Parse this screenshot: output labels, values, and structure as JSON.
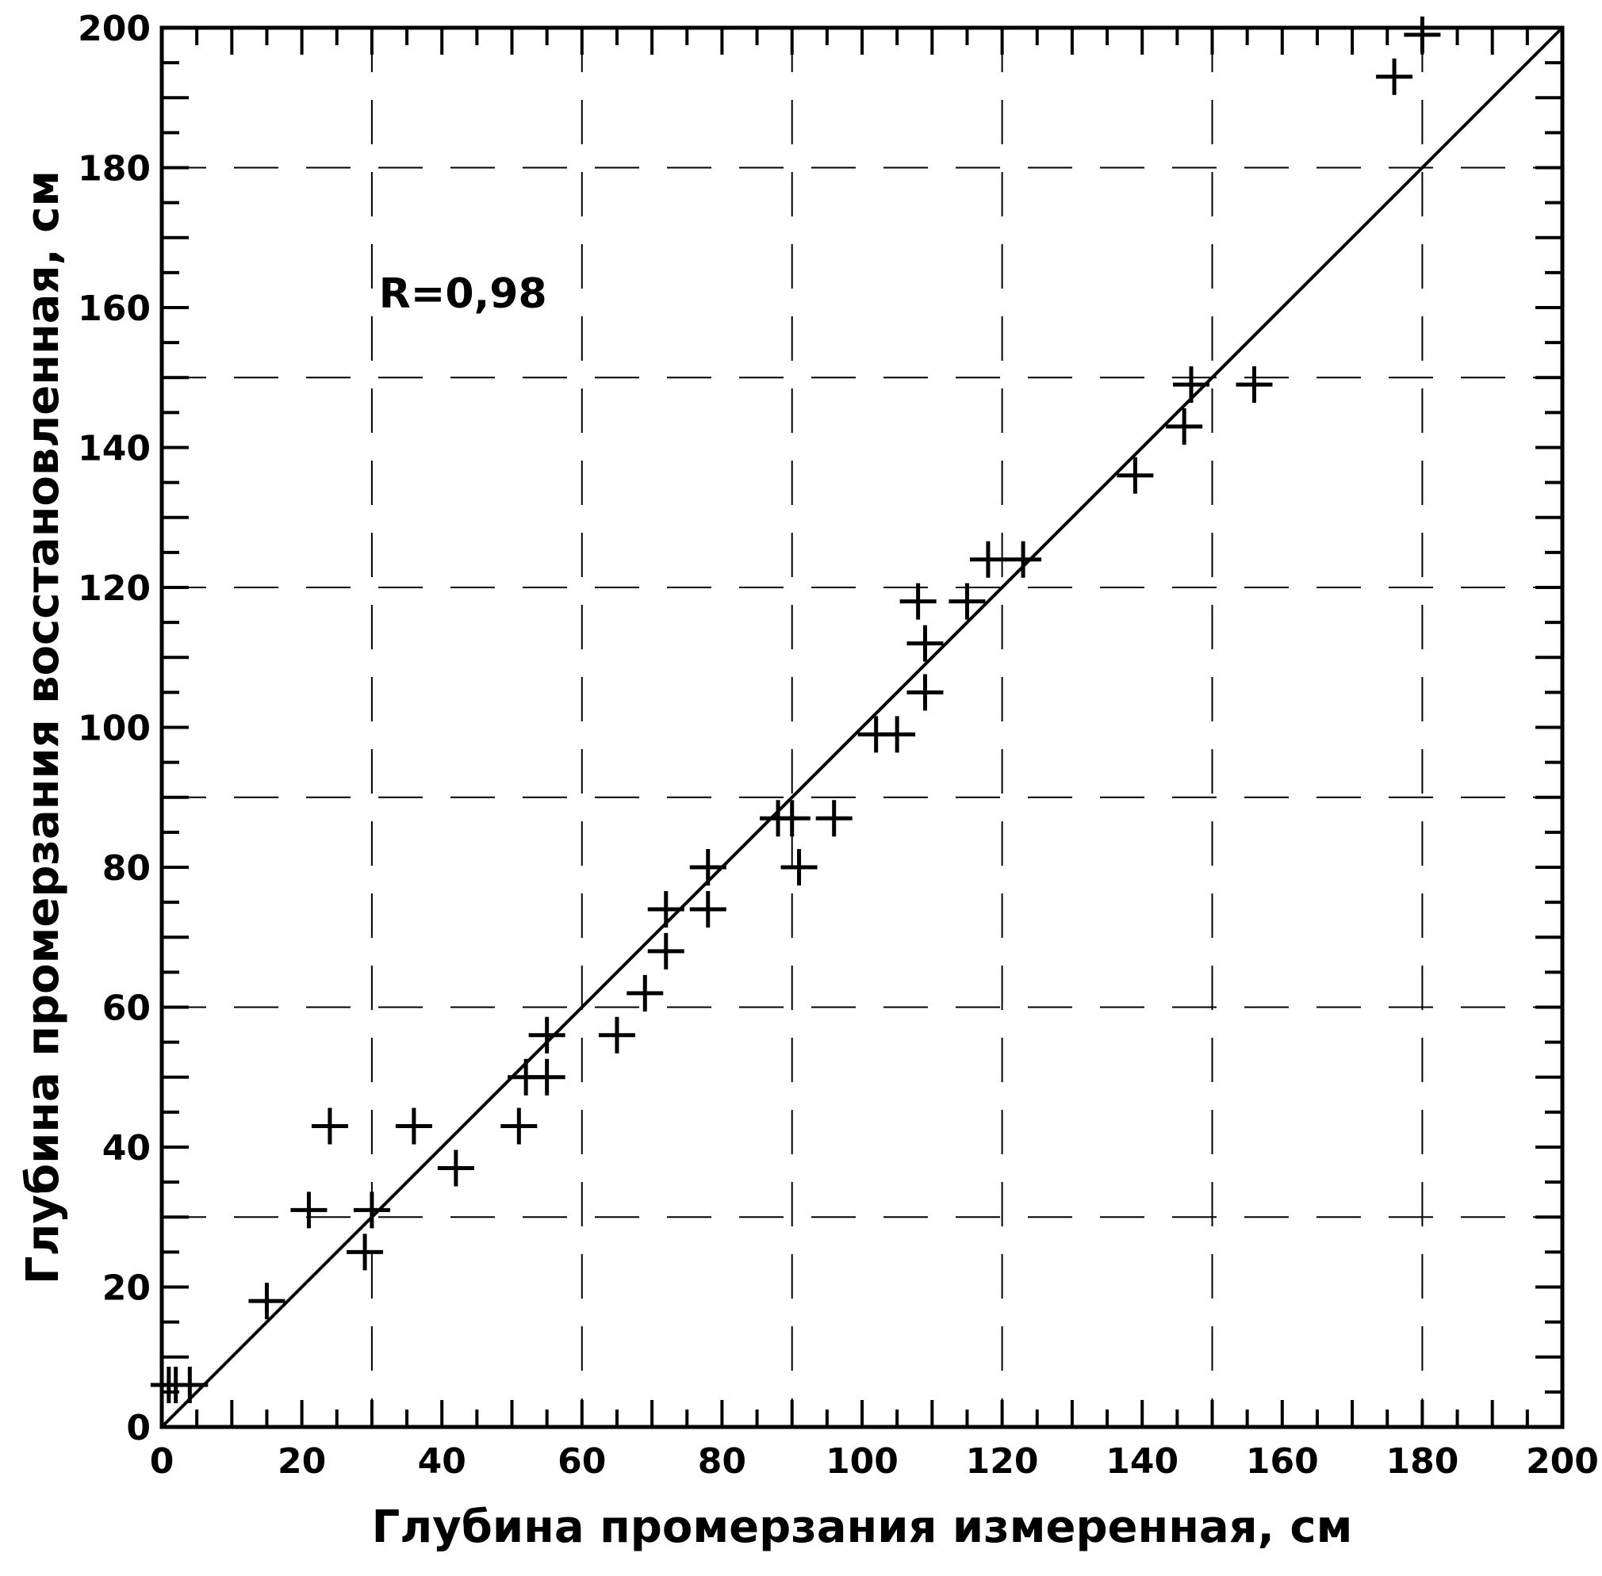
{
  "chart_data": {
    "type": "scatter",
    "title": "",
    "xlabel": "Глубина промерзания измеренная, см",
    "ylabel": "Глубина промерзания восстановленная, см",
    "xlim": [
      0,
      200
    ],
    "ylim": [
      0,
      200
    ],
    "x_ticks": [
      0,
      20,
      40,
      60,
      80,
      100,
      120,
      140,
      160,
      180,
      200
    ],
    "y_ticks": [
      0,
      20,
      40,
      60,
      80,
      100,
      120,
      140,
      160,
      180,
      200
    ],
    "x_tick_labels": [
      "0",
      "20",
      "40",
      "60",
      "80",
      "100",
      "120",
      "140",
      "160",
      "180",
      "200"
    ],
    "y_tick_labels": [
      "0",
      "20",
      "40",
      "60",
      "80",
      "100",
      "120",
      "140",
      "160",
      "180",
      "200"
    ],
    "x_gridlines": [
      30,
      60,
      90,
      120,
      150,
      180
    ],
    "y_gridlines": [
      30,
      60,
      90,
      120,
      150,
      180
    ],
    "grid": true,
    "reference_line": {
      "type": "y=x",
      "from": [
        0,
        0
      ],
      "to": [
        200,
        200
      ]
    },
    "annotation": "R=0,98",
    "marker": "plus",
    "colors": {
      "marks": "#000000",
      "grid": "#000000",
      "background": "#ffffff"
    },
    "series": [
      {
        "points": [
          [
            1,
            6
          ],
          [
            2,
            6
          ],
          [
            4,
            6
          ],
          [
            15,
            18
          ],
          [
            21,
            31
          ],
          [
            24,
            43
          ],
          [
            29,
            25
          ],
          [
            30,
            31
          ],
          [
            36,
            43
          ],
          [
            42,
            37
          ],
          [
            51,
            43
          ],
          [
            52,
            50
          ],
          [
            55,
            50
          ],
          [
            55,
            56
          ],
          [
            65,
            56
          ],
          [
            69,
            62
          ],
          [
            72,
            68
          ],
          [
            72,
            74
          ],
          [
            78,
            74
          ],
          [
            78,
            80
          ],
          [
            88,
            87
          ],
          [
            90,
            87
          ],
          [
            91,
            80
          ],
          [
            96,
            87
          ],
          [
            102,
            99
          ],
          [
            105,
            99
          ],
          [
            108,
            118
          ],
          [
            109,
            105
          ],
          [
            109,
            112
          ],
          [
            115,
            118
          ],
          [
            118,
            124
          ],
          [
            123,
            124
          ],
          [
            139,
            136
          ],
          [
            146,
            143
          ],
          [
            147,
            149
          ],
          [
            156,
            149
          ],
          [
            176,
            193
          ],
          [
            180,
            199
          ]
        ]
      }
    ]
  }
}
